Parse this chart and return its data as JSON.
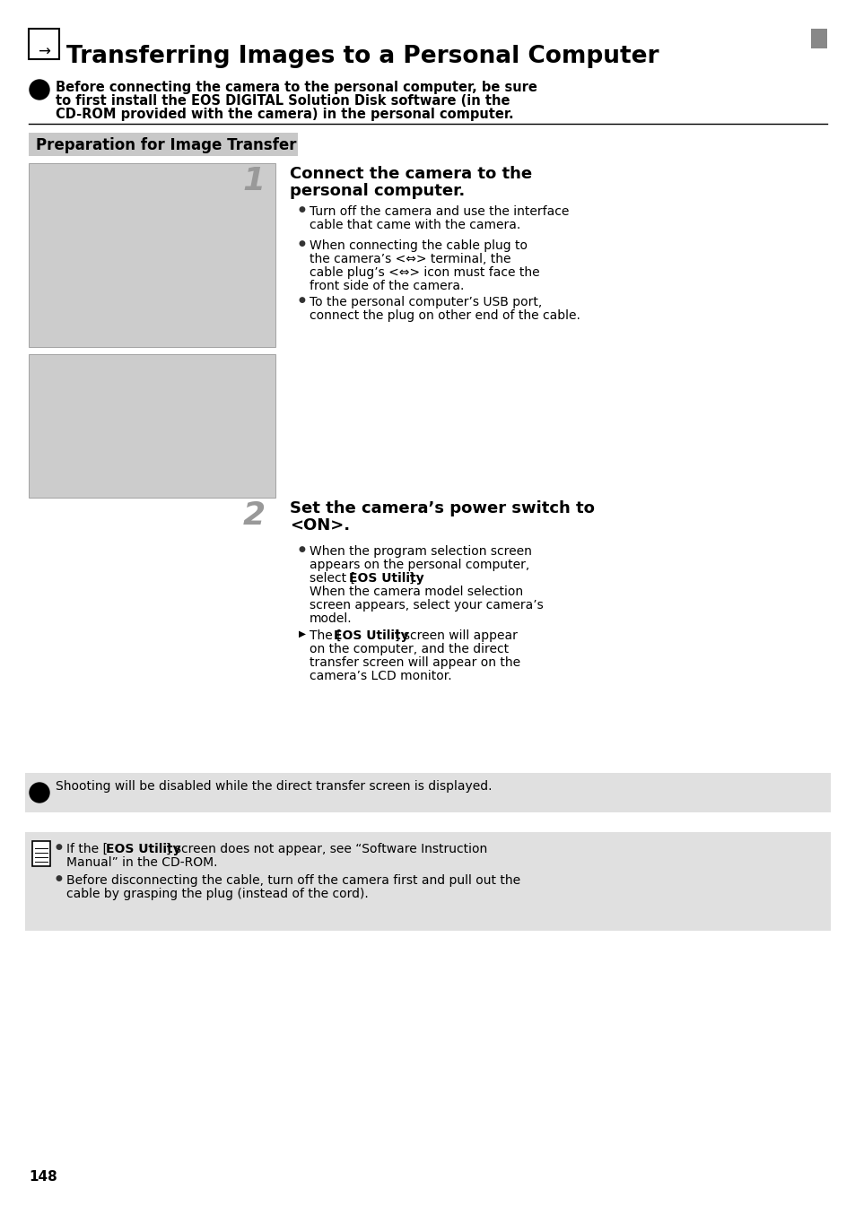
{
  "bg_color": "#ffffff",
  "title_text": "Transferring Images to a Personal Computer",
  "title_fontsize": 19,
  "warning_text_1": "Before connecting the camera to the personal computer, be sure",
  "warning_text_2": "to first install the EOS DIGITAL Solution Disk software (in the",
  "warning_text_3": "CD-ROM provided with the camera) in the personal computer.",
  "warning_fontsize": 10.5,
  "section_title": "Preparation for Image Transfer",
  "section_title_fontsize": 12,
  "section_bg": "#c8c8c8",
  "step1_h1": "Connect the camera to the",
  "step1_h2": "personal computer.",
  "step_fontsize": 13,
  "b1_l1": "Turn off the camera and use the interface",
  "b1_l2": "cable that came with the camera.",
  "b2_l1": "When connecting the cable plug to",
  "b2_l2": "the camera’s <⇔> terminal, the",
  "b2_l3": "cable plug’s <⇔> icon must face the",
  "b2_l4": "front side of the camera.",
  "b3_l1": "To the personal computer’s USB port,",
  "b3_l2": "connect the plug on other end of the cable.",
  "step2_h1": "Set the camera’s power switch to",
  "step2_h2": "<ON>.",
  "s2b1_l1": "When the program selection screen",
  "s2b1_l2": "appears on the personal computer,",
  "s2b1_l3a": "select [",
  "s2b1_l3b": "EOS Utility",
  "s2b1_l3c": "].",
  "s2b1_l4": "When the camera model selection",
  "s2b1_l5": "screen appears, select your camera’s",
  "s2b1_l6": "model.",
  "s2b2_l1a": "The [",
  "s2b2_l1b": "EOS Utility",
  "s2b2_l1c": "] screen will appear",
  "s2b2_l2": "on the computer, and the direct",
  "s2b2_l3": "transfer screen will appear on the",
  "s2b2_l4": "camera’s LCD monitor.",
  "note1_text": "Shooting will be disabled while the direct transfer screen is displayed.",
  "n2b1_l1a": "If the [",
  "n2b1_l1b": "EOS Utility",
  "n2b1_l1c": "] screen does not appear, see “Software Instruction",
  "n2b1_l2": "Manual” in the CD-ROM.",
  "n2b2_l1": "Before disconnecting the cable, turn off the camera first and pull out the",
  "n2b2_l2": "cable by grasping the plug (instead of the cord).",
  "page_number": "148",
  "note_bg": "#e0e0e0",
  "note2_bg": "#e0e0e0",
  "body_fontsize": 10.0,
  "lh": 15
}
